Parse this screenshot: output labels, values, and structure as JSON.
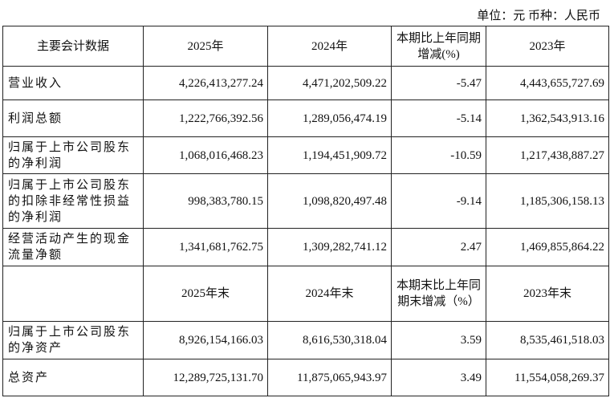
{
  "unit_note": "单位：元 币种：人民币",
  "header1": [
    "主要会计数据",
    "2025年",
    "2024年",
    "本期比上年同期增减(%)",
    "2023年"
  ],
  "rows1": [
    {
      "label": "营业收入",
      "values": [
        "4,226,413,277.24",
        "4,471,202,509.22",
        "-5.47",
        "4,443,655,727.69"
      ]
    },
    {
      "label": "利润总额",
      "values": [
        "1,222,766,392.56",
        "1,289,056,474.19",
        "-5.14",
        "1,362,543,913.16"
      ]
    },
    {
      "label": "归属于上市公司股东的净利润",
      "values": [
        "1,068,016,468.23",
        "1,194,451,909.72",
        "-10.59",
        "1,217,438,887.27"
      ]
    },
    {
      "label": "归属于上市公司股东的扣除非经常性损益的净利润",
      "values": [
        "998,383,780.15",
        "1,098,820,497.48",
        "-9.14",
        "1,185,306,158.13"
      ]
    },
    {
      "label": "经营活动产生的现金流量净额",
      "values": [
        "1,341,681,762.75",
        "1,309,282,741.12",
        "2.47",
        "1,469,855,864.22"
      ]
    }
  ],
  "header2": [
    "",
    "2025年末",
    "2024年末",
    "本期末比上年同期末增减（%）",
    "2023年末"
  ],
  "rows2": [
    {
      "label": "归属于上市公司股东的净资产",
      "values": [
        "8,926,154,166.03",
        "8,616,530,318.04",
        "3.59",
        "8,535,461,518.03"
      ]
    },
    {
      "label": "总资产",
      "values": [
        "12,289,725,131.70",
        "11,875,065,943.97",
        "3.49",
        "11,554,058,269.37"
      ]
    }
  ]
}
